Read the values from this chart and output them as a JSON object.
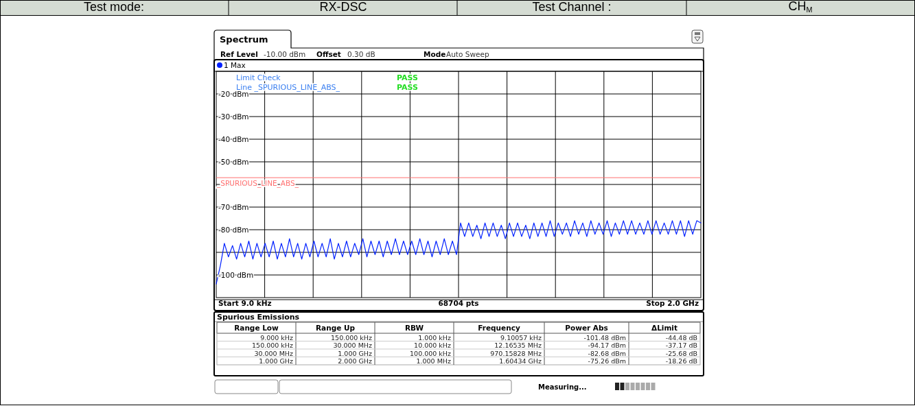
{
  "chart_data": [
    {
      "type": "line",
      "annotations": [
        "Test mode:",
        "RX-DSC",
        "Test Channel :",
        "CH$_{M}$",
        "Spectrum",
        "Ref Level",
        "-10.00 dBm",
        "Offset",
        "0.30 dB",
        "Mode",
        "Auto Sweep",
        "Limit Check",
        "PASS",
        "Line _SPURIOUS_LINE_ABS_",
        "PASS",
        "Start 9.0 kHz",
        "68704 pts",
        "Stop 2.0 GHz",
        "Measuring..."
      ],
      "categories": [
        null,
        null,
        null,
        null,
        null,
        null,
        null,
        null,
        null,
        null,
        null,
        null,
        null,
        null,
        null,
        null,
        null,
        null,
        null,
        null,
        null,
        null,
        null,
        null,
        null,
        null,
        null,
        null,
        null,
        null,
        null,
        null,
        null,
        null,
        null,
        null,
        null,
        null,
        null,
        null,
        null,
        null,
        null,
        null,
        null,
        null,
        null,
        null,
        null,
        null,
        null,
        null,
        null,
        null,
        null,
        null,
        null,
        null,
        null,
        null,
        null,
        null,
        null,
        null,
        null,
        null,
        null,
        null,
        null,
        null,
        null,
        null,
        null,
        null,
        null,
        null,
        null,
        null,
        null,
        null,
        null,
        null,
        null,
        null,
        null,
        null,
        null,
        null,
        null,
        null,
        null,
        null,
        null,
        null,
        null,
        null,
        null,
        null,
        null,
        null,
        null,
        null,
        null,
        null,
        null,
        null,
        null,
        null,
        null,
        null,
        null,
        null,
        null,
        null,
        null,
        null,
        null,
        null,
        null,
        null
      ],
      "ylim": [
        -110,
        -10
      ],
      "yticks": [
        {
          "value": -20,
          "label": "-20 dBm"
        },
        {
          "value": -30,
          "label": "-30 dBm"
        },
        {
          "value": -40,
          "label": "-40 dBm"
        },
        {
          "value": -50,
          "label": "-50 dBm"
        },
        {
          "value": -60,
          "label": null
        },
        {
          "value": -70,
          "label": "-70 dBm"
        },
        {
          "value": -80,
          "label": "-80 dBm"
        },
        {
          "value": -90,
          "label": null
        },
        {
          "value": -100,
          "label": "-100 dBm"
        }
      ],
      "grid": true,
      "legend": "top left",
      "ref_lines": [
        {
          "axis": "y",
          "value": -57,
          "label": "_SPURIOUS_LINE_ABS_",
          "color": "#ff7070"
        }
      ],
      "series": [
        {
          "name": "1 Max",
          "color": "#0020ff",
          "values": [
            -104,
            -96,
            -86,
            -92,
            -87,
            -93,
            -86,
            -92,
            -85,
            -93,
            -86,
            -92,
            -86,
            -92,
            -85,
            -93,
            -86,
            -92,
            -84,
            -92,
            -86,
            -93,
            -86,
            -92,
            -85,
            -92,
            -86,
            -92,
            -84,
            -93,
            -86,
            -92,
            -85,
            -92,
            -86,
            -91,
            -84,
            -92,
            -85,
            -91,
            -85,
            -92,
            -85,
            -91,
            -84,
            -91,
            -85,
            -91,
            -85,
            -91,
            -84,
            -91,
            -85,
            -92,
            -85,
            -91,
            -84,
            -91,
            -85,
            -91,
            -77,
            -83,
            -77,
            -83,
            -78,
            -84,
            -77,
            -83,
            -77,
            -83,
            -78,
            -84,
            -77,
            -83,
            -77,
            -83,
            -78,
            -84,
            -77,
            -83,
            -77,
            -83,
            -76,
            -83,
            -77,
            -82,
            -77,
            -83,
            -76,
            -82,
            -77,
            -83,
            -76,
            -82,
            -77,
            -82,
            -76,
            -83,
            -77,
            -82,
            -76,
            -82,
            -76,
            -82,
            -77,
            -82,
            -76,
            -82,
            -76,
            -82,
            -77,
            -82,
            -76,
            -82,
            -76,
            -83,
            -76,
            -82,
            -76,
            -77
          ]
        }
      ]
    },
    {
      "type": "other",
      "title": "Spurious Emissions",
      "annotations": [
        "Range Low",
        "Range Up",
        "RBW",
        "Frequency",
        "Power Abs",
        "ΔLimit",
        "9.000 kHz",
        "150.000 kHz",
        "1.000 kHz",
        "9.10057 kHz",
        "-101.48 dBm",
        "-44.48 dB",
        "150.000 kHz",
        "30.000 MHz",
        "10.000 kHz",
        "12.16535 MHz",
        "-94.17 dBm",
        "-37.17 dB",
        "30.000 MHz",
        "1.000 GHz",
        "100.000 kHz",
        "970.15828 MHz",
        "-82.68 dBm",
        "-25.68 dB",
        "1.000 GHz",
        "2.000 GHz",
        "1.000 MHz",
        "1.60434 GHz",
        "-75.26 dBm",
        "-18.26 dB"
      ]
    }
  ]
}
